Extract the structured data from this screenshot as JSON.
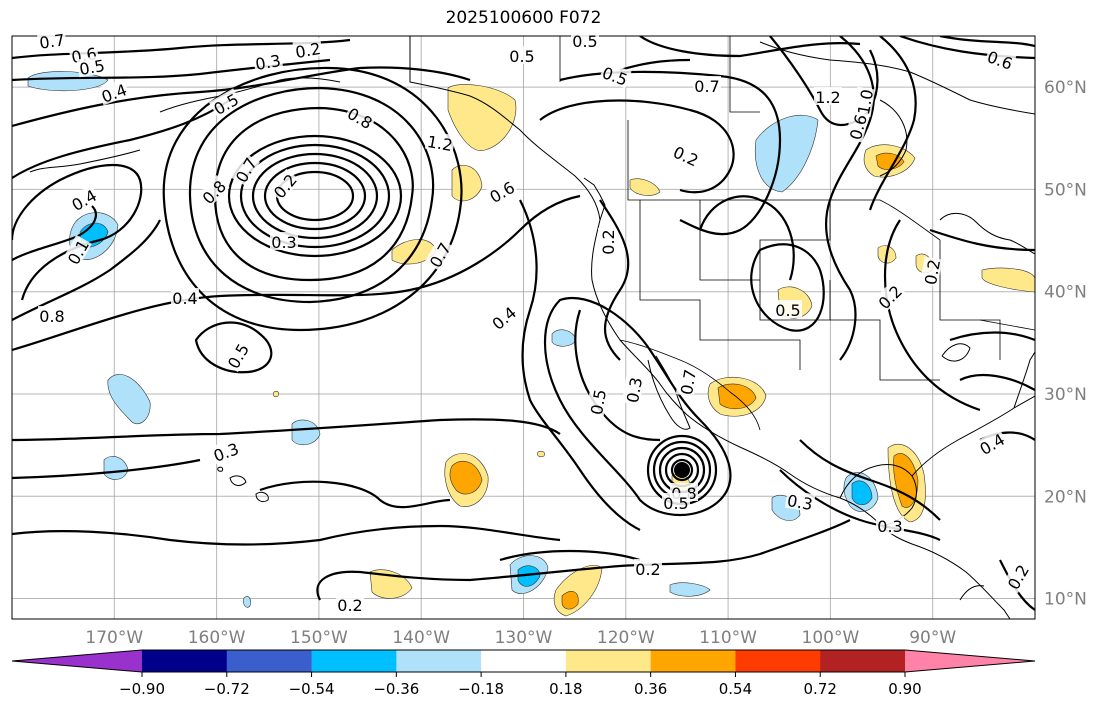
{
  "title": "2025100600 F072",
  "map": {
    "lon_range": [
      -180,
      -80
    ],
    "lat_range": [
      8,
      65
    ],
    "lon_ticks": [
      "170°W",
      "160°W",
      "150°W",
      "140°W",
      "130°W",
      "120°W",
      "110°W",
      "100°W",
      "90°W"
    ],
    "lat_ticks": [
      "60°N",
      "50°N",
      "40°N",
      "30°N",
      "20°N",
      "10°N"
    ],
    "grid": true
  },
  "colorbar": {
    "ticks": [
      "−0.90",
      "−0.72",
      "−0.54",
      "−0.36",
      "−0.18",
      "0.18",
      "0.36",
      "0.54",
      "0.72",
      "0.90"
    ],
    "colors": [
      "#9932cc",
      "#00008b",
      "#3a5fcd",
      "#00bfff",
      "#afe1fb",
      "#ffffff",
      "#fee88a",
      "#ffa500",
      "#ff3c00",
      "#b22222",
      "#ff83a8"
    ]
  },
  "contour_labels": [
    {
      "text": "0.7"
    },
    {
      "text": "0.6"
    },
    {
      "text": "0.5"
    },
    {
      "text": "0.3"
    },
    {
      "text": "0.2"
    },
    {
      "text": "0.4"
    },
    {
      "text": "0.5"
    },
    {
      "text": "0.8"
    },
    {
      "text": "0.7"
    },
    {
      "text": "0.2"
    },
    {
      "text": "0.3"
    },
    {
      "text": "0.4"
    },
    {
      "text": "0.1"
    },
    {
      "text": "0.8"
    },
    {
      "text": "0.4"
    },
    {
      "text": "0.5"
    },
    {
      "text": "0.8"
    },
    {
      "text": "1.2"
    },
    {
      "text": "0.6"
    },
    {
      "text": "0.7"
    },
    {
      "text": "0.5"
    },
    {
      "text": "0.5"
    },
    {
      "text": "0.5"
    },
    {
      "text": "0.7"
    },
    {
      "text": "1.2"
    },
    {
      "text": "0.2"
    },
    {
      "text": "0.6"
    },
    {
      "text": "0.2"
    },
    {
      "text": "0.4"
    },
    {
      "text": "0.5"
    },
    {
      "text": "0.5"
    },
    {
      "text": "0.2"
    },
    {
      "text": "0.3"
    },
    {
      "text": "0.3"
    },
    {
      "text": "0.3"
    },
    {
      "text": "0.2"
    },
    {
      "text": "0.2"
    },
    {
      "text": "0.4"
    },
    {
      "text": "0.2"
    },
    {
      "text": "0.2"
    },
    {
      "text": "0.3"
    },
    {
      "text": "0.8"
    },
    {
      "text": "0.5"
    },
    {
      "text": "0.7"
    },
    {
      "text": "0.6"
    },
    {
      "text": "1.0"
    }
  ]
}
